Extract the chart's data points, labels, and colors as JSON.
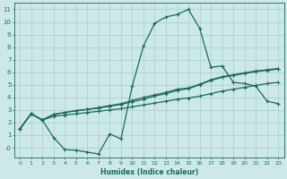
{
  "xlabel": "Humidex (Indice chaleur)",
  "bg_color": "#cce8e8",
  "grid_color": "#aacece",
  "line_color": "#1a6b5a",
  "xlim": [
    -0.5,
    23.5
  ],
  "ylim": [
    -0.8,
    11.5
  ],
  "xticks": [
    0,
    1,
    2,
    3,
    4,
    5,
    6,
    7,
    8,
    9,
    10,
    11,
    12,
    13,
    14,
    15,
    16,
    17,
    18,
    19,
    20,
    21,
    22,
    23
  ],
  "yticks": [
    0,
    1,
    2,
    3,
    4,
    5,
    6,
    7,
    8,
    9,
    10,
    11
  ],
  "ytick_labels": [
    "-0",
    "1",
    "2",
    "3",
    "4",
    "5",
    "6",
    "7",
    "8",
    "9",
    "10",
    "11"
  ],
  "line1_x": [
    0,
    1,
    2,
    3,
    4,
    5,
    6,
    7,
    8,
    9,
    10,
    11,
    12,
    13,
    14,
    15,
    16,
    17,
    18,
    19,
    20,
    21,
    22,
    23
  ],
  "line1_y": [
    1.5,
    2.7,
    2.2,
    0.8,
    -0.15,
    -0.2,
    -0.35,
    -0.5,
    1.1,
    0.7,
    4.9,
    8.1,
    9.9,
    10.4,
    10.6,
    11.0,
    9.5,
    6.4,
    6.5,
    5.2,
    5.1,
    4.9,
    3.7,
    3.5
  ],
  "line2_x": [
    0,
    1,
    2,
    3,
    4,
    5,
    6,
    7,
    8,
    9,
    10,
    11,
    12,
    13,
    14,
    15,
    16,
    17,
    18,
    19,
    20,
    21,
    22,
    23
  ],
  "line2_y": [
    1.5,
    2.7,
    2.2,
    2.65,
    2.8,
    2.95,
    3.05,
    3.15,
    3.3,
    3.45,
    3.65,
    3.85,
    4.1,
    4.3,
    4.55,
    4.7,
    5.0,
    5.35,
    5.6,
    5.75,
    5.9,
    6.05,
    6.15,
    6.25
  ],
  "line3_x": [
    0,
    1,
    2,
    3,
    4,
    5,
    6,
    7,
    8,
    9,
    10,
    11,
    12,
    13,
    14,
    15,
    16,
    17,
    18,
    19,
    20,
    21,
    22,
    23
  ],
  "line3_y": [
    1.5,
    2.7,
    2.2,
    2.65,
    2.8,
    2.95,
    3.05,
    3.2,
    3.35,
    3.5,
    3.75,
    4.0,
    4.2,
    4.4,
    4.65,
    4.75,
    5.05,
    5.4,
    5.65,
    5.8,
    5.95,
    6.1,
    6.2,
    6.3
  ],
  "line4_x": [
    0,
    1,
    2,
    3,
    4,
    5,
    6,
    7,
    8,
    9,
    10,
    11,
    12,
    13,
    14,
    15,
    16,
    17,
    18,
    19,
    20,
    21,
    22,
    23
  ],
  "line4_y": [
    1.5,
    2.7,
    2.2,
    2.5,
    2.6,
    2.7,
    2.8,
    2.9,
    3.0,
    3.1,
    3.25,
    3.4,
    3.55,
    3.7,
    3.85,
    3.95,
    4.1,
    4.3,
    4.5,
    4.65,
    4.8,
    4.95,
    5.1,
    5.2
  ]
}
